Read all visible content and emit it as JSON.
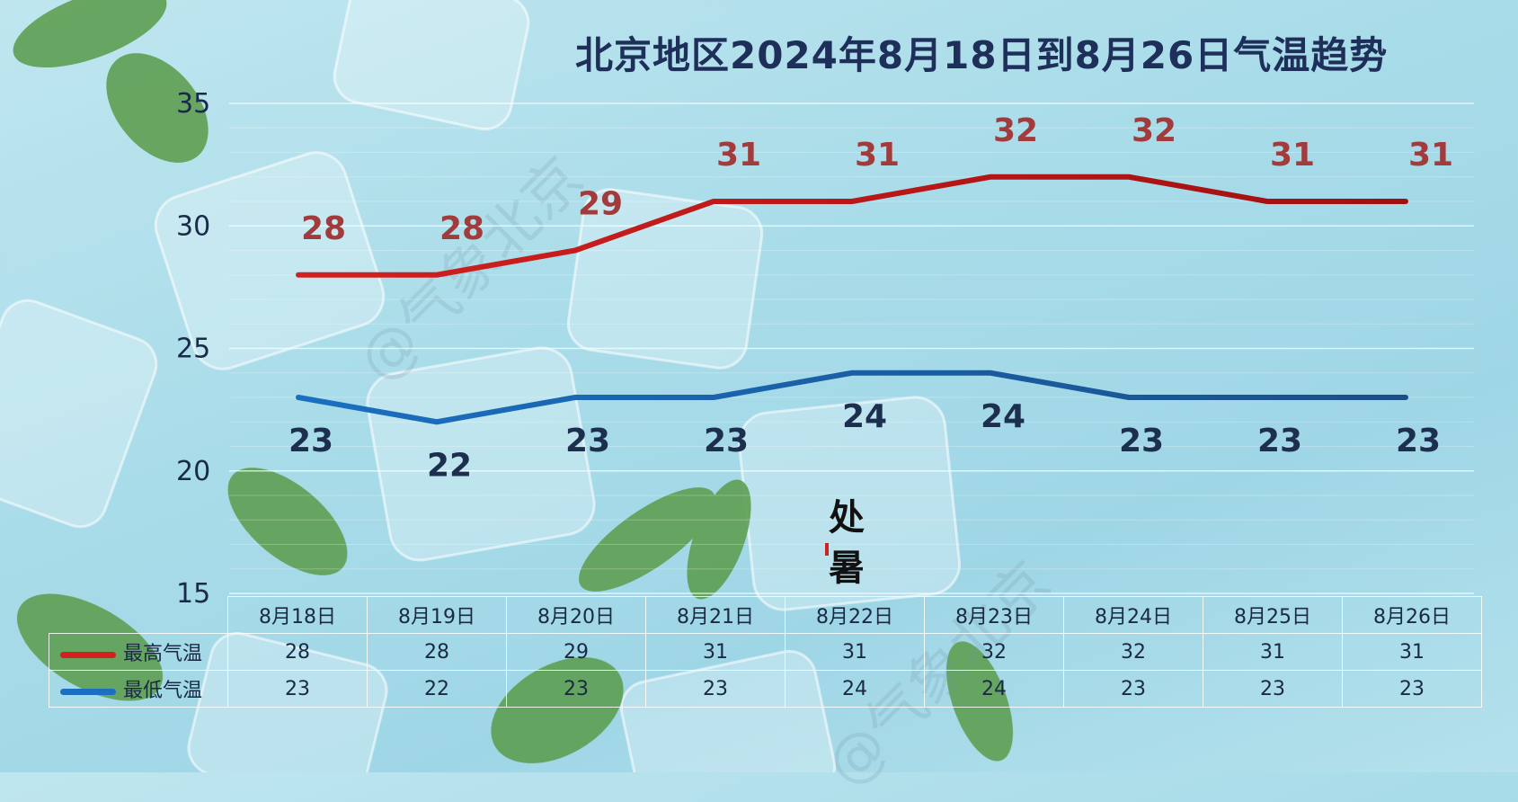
{
  "watermark": "@气象北京",
  "solar_term": [
    "处",
    "暑"
  ],
  "colors": {
    "high": "#d32020",
    "high_end": "#a01010",
    "low": "#1a6fc0",
    "low_end": "#1a4f8a"
  },
  "chart_data": {
    "type": "line",
    "title": "北京地区2024年8月18日到8月26日气温趋势",
    "categories": [
      "8月18日",
      "8月19日",
      "8月20日",
      "8月21日",
      "8月22日",
      "8月23日",
      "8月24日",
      "8月25日",
      "8月26日"
    ],
    "series": [
      {
        "name": "最高气温",
        "values": [
          28,
          28,
          29,
          31,
          31,
          32,
          32,
          31,
          31
        ]
      },
      {
        "name": "最低气温",
        "values": [
          23,
          22,
          23,
          23,
          24,
          24,
          23,
          23,
          23
        ]
      }
    ],
    "yticks": [
      35,
      30,
      25,
      20,
      15
    ],
    "ylim": [
      15,
      35
    ],
    "grid": true,
    "legend": "data table below chart"
  }
}
